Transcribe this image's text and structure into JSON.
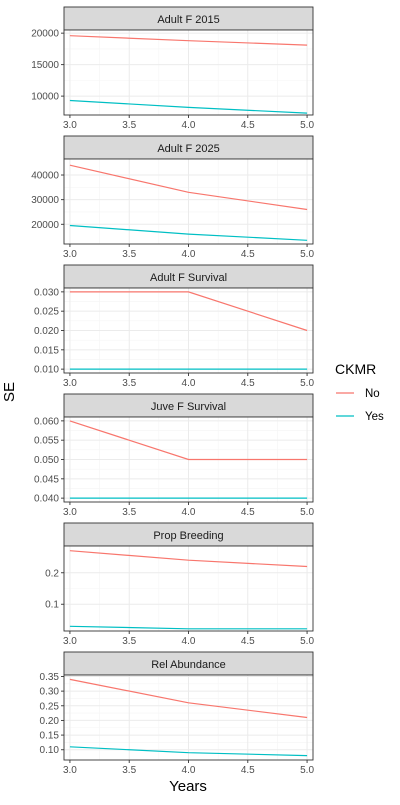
{
  "colors": {
    "no": "#F8766D",
    "yes": "#00BFC4",
    "strip_bg": "#D9D9D9",
    "grid_major": "#EBEBEB",
    "grid_minor": "#F5F5F5",
    "frame": "#333333",
    "tick_text": "#4D4D4D"
  },
  "legend": {
    "title": "CKMR",
    "items": [
      {
        "label": "No",
        "color_key": "no"
      },
      {
        "label": "Yes",
        "color_key": "yes"
      }
    ]
  },
  "axes": {
    "ylabel": "SE",
    "xlabel": "Years"
  },
  "chart_data": {
    "type": "line",
    "facet_layout": "stacked vertically, one column",
    "grid": true,
    "legend_position": "right",
    "x_ticks": [
      3.0,
      3.5,
      4.0,
      4.5,
      5.0
    ],
    "x_tick_labels": [
      "3.0",
      "3.5",
      "4.0",
      "4.5",
      "5.0"
    ],
    "xlim": [
      2.95,
      5.05
    ],
    "x": [
      3,
      4,
      5
    ],
    "panels": [
      {
        "title": "Adult F 2015",
        "ylim": [
          7000,
          20500
        ],
        "y_ticks": [
          10000,
          15000,
          20000
        ],
        "y_tick_labels": [
          "10000",
          "15000",
          "20000"
        ],
        "series": [
          {
            "name": "No",
            "values": [
              19600,
              18800,
              18100
            ]
          },
          {
            "name": "Yes",
            "values": [
              9300,
              8200,
              7300
            ]
          }
        ]
      },
      {
        "title": "Adult F 2025",
        "ylim": [
          12000,
          46500
        ],
        "y_ticks": [
          20000,
          30000,
          40000
        ],
        "y_tick_labels": [
          "20000",
          "30000",
          "40000"
        ],
        "series": [
          {
            "name": "No",
            "values": [
              44000,
              33000,
              26000
            ]
          },
          {
            "name": "Yes",
            "values": [
              19500,
              16000,
              13500
            ]
          }
        ]
      },
      {
        "title": "Adult F Survival",
        "ylim": [
          0.009,
          0.031
        ],
        "y_ticks": [
          0.01,
          0.015,
          0.02,
          0.025,
          0.03
        ],
        "y_tick_labels": [
          "0.010",
          "0.015",
          "0.020",
          "0.025",
          "0.030"
        ],
        "series": [
          {
            "name": "No",
            "values": [
              0.03,
              0.03,
              0.02
            ]
          },
          {
            "name": "Yes",
            "values": [
              0.01,
              0.01,
              0.01
            ]
          }
        ]
      },
      {
        "title": "Juve F Survival",
        "ylim": [
          0.039,
          0.061
        ],
        "y_ticks": [
          0.04,
          0.045,
          0.05,
          0.055,
          0.06
        ],
        "y_tick_labels": [
          "0.040",
          "0.045",
          "0.050",
          "0.055",
          "0.060"
        ],
        "series": [
          {
            "name": "No",
            "values": [
              0.06,
              0.05,
              0.05
            ]
          },
          {
            "name": "Yes",
            "values": [
              0.04,
              0.04,
              0.04
            ]
          }
        ]
      },
      {
        "title": "Prop Breeding",
        "ylim": [
          0.015,
          0.285
        ],
        "y_ticks": [
          0.1,
          0.2
        ],
        "y_tick_labels": [
          "0.1",
          "0.2"
        ],
        "series": [
          {
            "name": "No",
            "values": [
              0.27,
              0.24,
              0.22
            ]
          },
          {
            "name": "Yes",
            "values": [
              0.03,
              0.022,
              0.022
            ]
          }
        ]
      },
      {
        "title": "Rel Abundance",
        "ylim": [
          0.065,
          0.355
        ],
        "y_ticks": [
          0.1,
          0.15,
          0.2,
          0.25,
          0.3,
          0.35
        ],
        "y_tick_labels": [
          "0.10",
          "0.15",
          "0.20",
          "0.25",
          "0.30",
          "0.35"
        ],
        "series": [
          {
            "name": "No",
            "values": [
              0.34,
              0.26,
              0.21
            ]
          },
          {
            "name": "Yes",
            "values": [
              0.11,
              0.09,
              0.08
            ]
          }
        ]
      }
    ]
  }
}
